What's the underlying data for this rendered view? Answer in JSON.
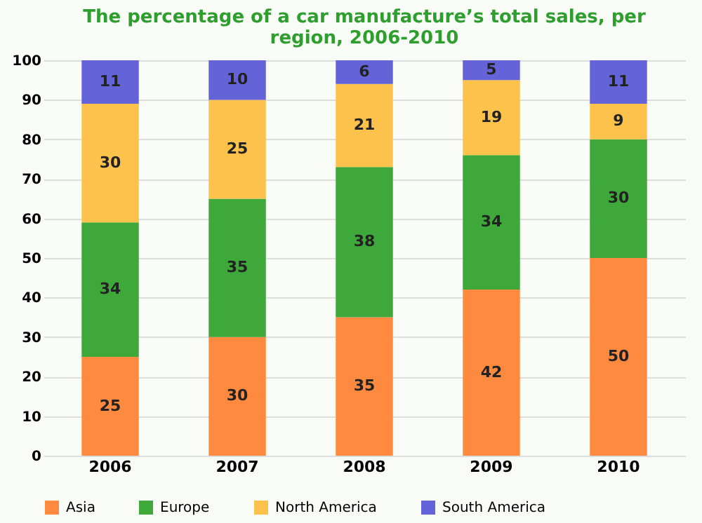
{
  "chart_data": {
    "type": "bar",
    "stacked": true,
    "title": "The percentage of a car manufacture’s total sales, per region, 2006-2010",
    "categories": [
      "2006",
      "2007",
      "2008",
      "2009",
      "2010"
    ],
    "series": [
      {
        "name": "Asia",
        "color": "#fd8a3e",
        "values": [
          25,
          30,
          35,
          42,
          50
        ]
      },
      {
        "name": "Europe",
        "color": "#3ea83a",
        "values": [
          34,
          35,
          38,
          34,
          30
        ]
      },
      {
        "name": "North America",
        "color": "#fcc24c",
        "values": [
          30,
          25,
          21,
          19,
          9
        ]
      },
      {
        "name": "South America",
        "color": "#6464d8",
        "values": [
          11,
          10,
          6,
          5,
          11
        ]
      }
    ],
    "ylim": [
      0,
      100
    ],
    "yticks": [
      0,
      10,
      20,
      30,
      40,
      50,
      60,
      70,
      80,
      90,
      100
    ],
    "grid": "y",
    "legend": "bottom",
    "data_labels": true
  }
}
